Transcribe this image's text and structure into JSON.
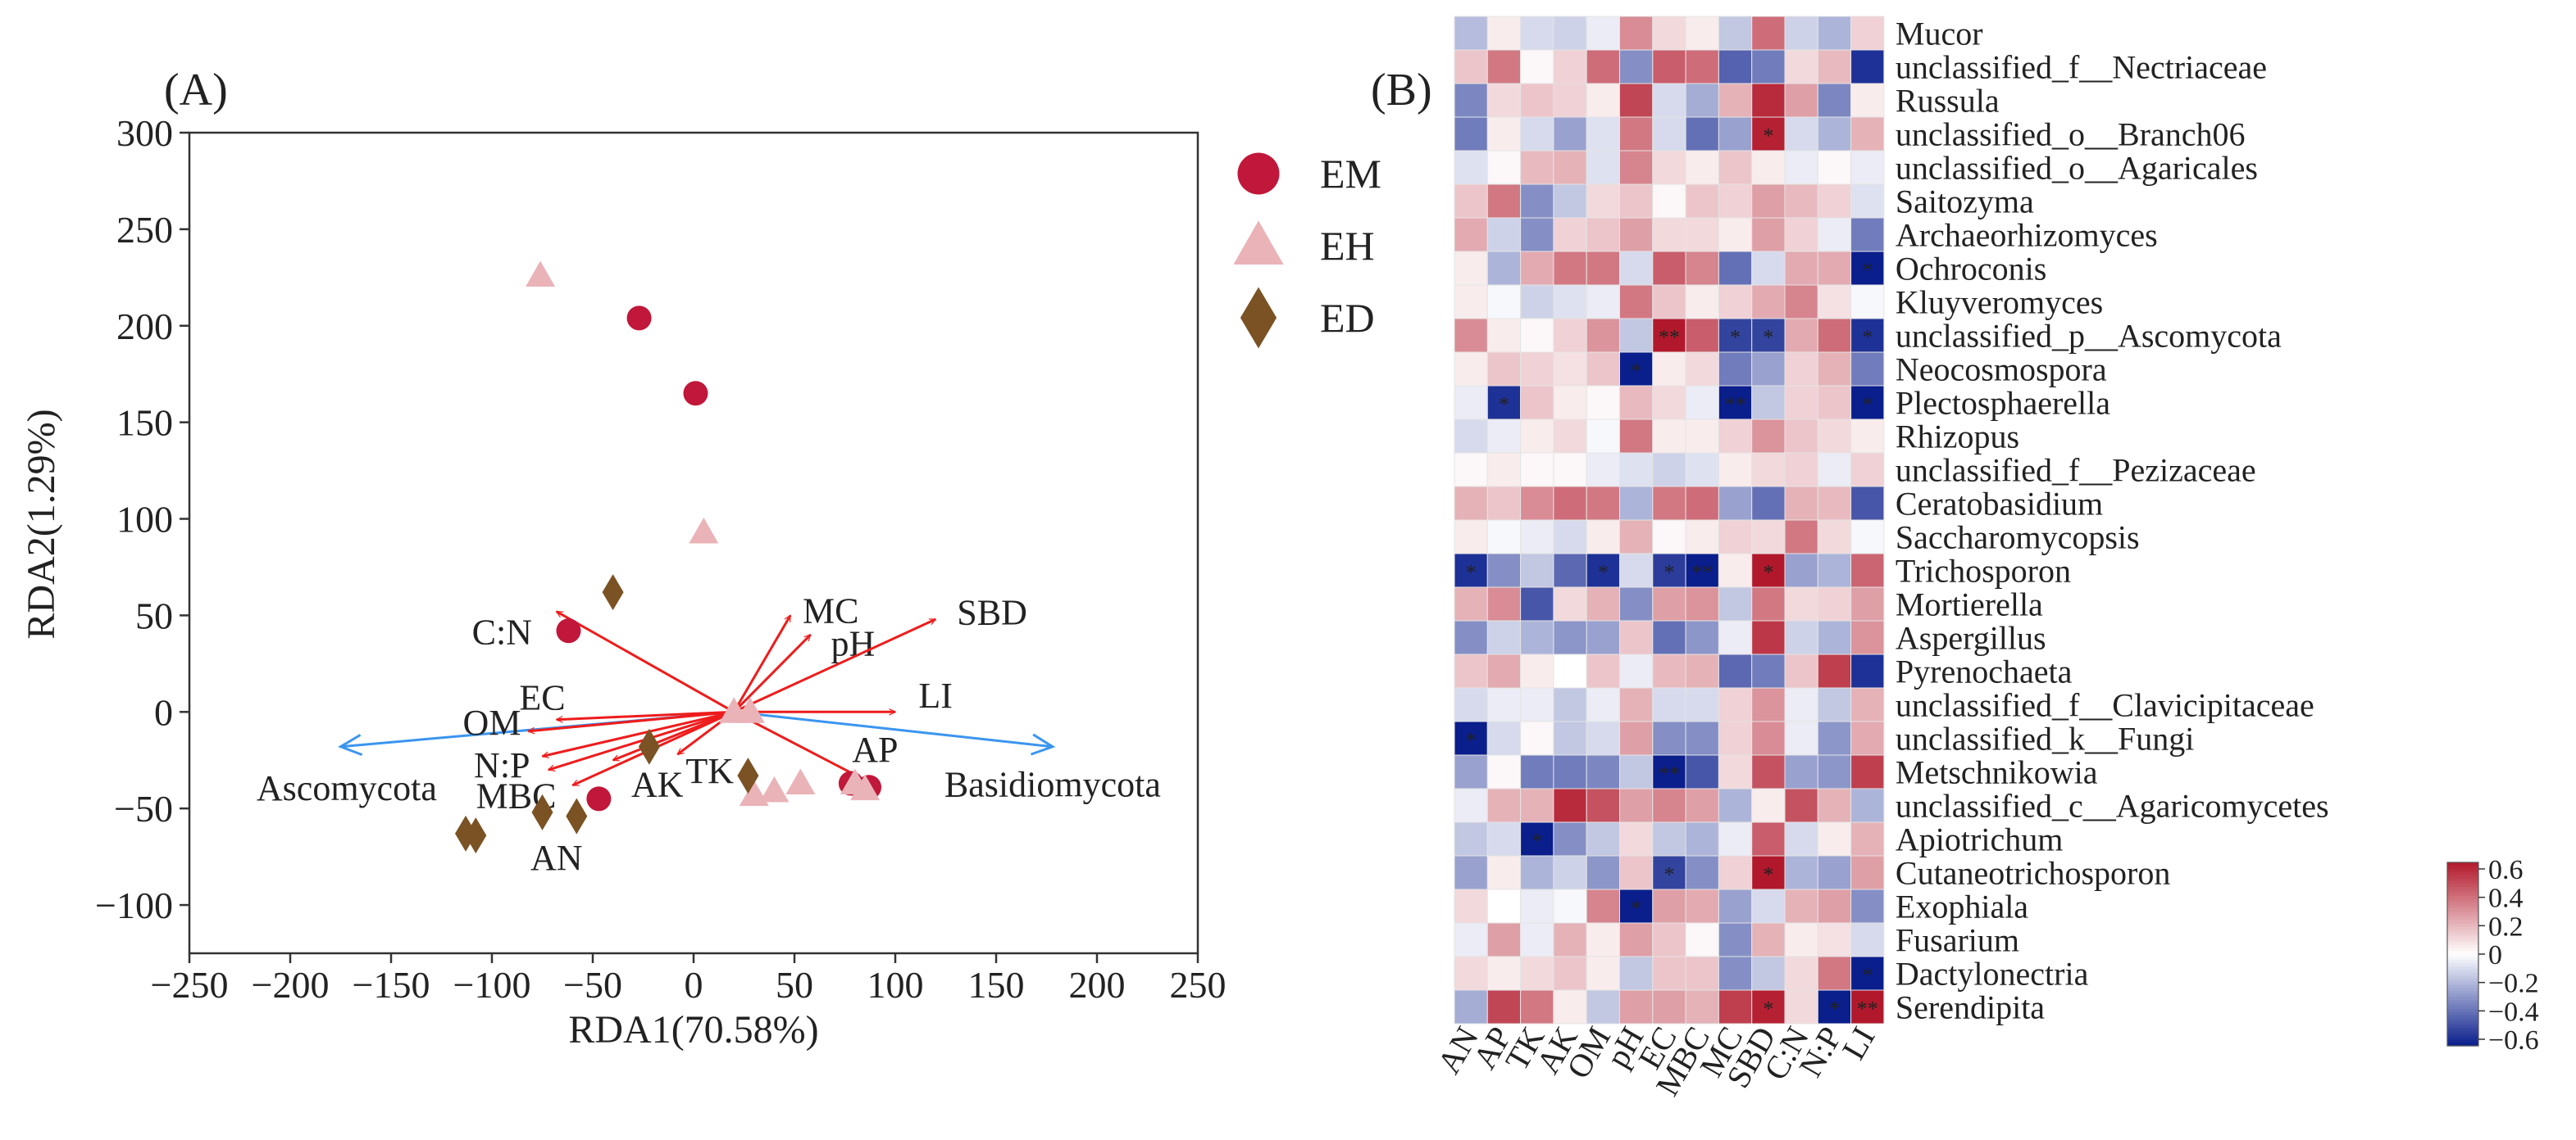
{
  "panels": {
    "a": {
      "label": "(A)",
      "legend": [
        {
          "label": "EM",
          "shape": "circle",
          "color": "#c0173a"
        },
        {
          "label": "EH",
          "shape": "triangle",
          "color": "#eab3b8"
        },
        {
          "label": "ED",
          "shape": "diamond",
          "color": "#7b5224"
        }
      ]
    },
    "b": {
      "label": "(B)",
      "colorbar_ticks": [
        "0.6",
        "0.4",
        "0.2",
        "0",
        "−0.2",
        "−0.4",
        "−0.6"
      ]
    }
  },
  "chart_data": [
    {
      "type": "scatter",
      "subtype": "rda-biplot",
      "xlabel": "RDA1(70.58%)",
      "ylabel": "RDA2(1.29%)",
      "xlim": [
        -250,
        250
      ],
      "ylim": [
        -125,
        300
      ],
      "xticks": [
        -250,
        -200,
        -150,
        -100,
        -50,
        0,
        50,
        100,
        150,
        200,
        250
      ],
      "yticks": [
        -100,
        -50,
        0,
        50,
        100,
        150,
        200,
        250,
        300
      ],
      "xtick_labels": [
        "−250",
        "−200",
        "−150",
        "−100",
        "−50",
        "0",
        "50",
        "100",
        "150",
        "200",
        "250"
      ],
      "ytick_labels": [
        "−100",
        "−50",
        "0",
        "50",
        "100",
        "150",
        "200",
        "250",
        "300"
      ],
      "series": [
        {
          "name": "EM",
          "points": [
            [
              -27,
              204
            ],
            [
              1,
              165
            ],
            [
              -62,
              42
            ],
            [
              -47,
              -45
            ],
            [
              78,
              -37
            ],
            [
              87,
              -39
            ]
          ]
        },
        {
          "name": "EH",
          "points": [
            [
              -76,
              226
            ],
            [
              5,
              93
            ],
            [
              20,
              0
            ],
            [
              28,
              0
            ],
            [
              30,
              -43
            ],
            [
              40,
              -41
            ],
            [
              53,
              -37
            ],
            [
              80,
              -37
            ],
            [
              85,
              -40
            ]
          ]
        },
        {
          "name": "ED",
          "points": [
            [
              -40,
              62
            ],
            [
              -22,
              -18
            ],
            [
              27,
              -33
            ],
            [
              -75,
              -52
            ],
            [
              -58,
              -54
            ],
            [
              -113,
              -63
            ],
            [
              -108,
              -64
            ]
          ]
        }
      ],
      "env_arrows": [
        {
          "name": "C:N",
          "x": -68,
          "y": 52,
          "lx": -95,
          "ly": 42
        },
        {
          "name": "EC",
          "x": -68,
          "y": -4,
          "lx": -75,
          "ly": 8
        },
        {
          "name": "OM",
          "x": -82,
          "y": -10,
          "lx": -100,
          "ly": -5
        },
        {
          "name": "N:P",
          "x": -75,
          "y": -23,
          "lx": -95,
          "ly": -27
        },
        {
          "name": "MBC",
          "x": -72,
          "y": -30,
          "lx": -88,
          "ly": -43
        },
        {
          "name": "AN",
          "x": -60,
          "y": -38,
          "lx": -68,
          "ly": -75
        },
        {
          "name": "AK",
          "x": -40,
          "y": -25,
          "lx": -18,
          "ly": -37
        },
        {
          "name": "TK",
          "x": -8,
          "y": -22,
          "lx": 8,
          "ly": -30
        },
        {
          "name": "MC",
          "x": 48,
          "y": 50,
          "lx": 68,
          "ly": 53
        },
        {
          "name": "pH",
          "x": 58,
          "y": 40,
          "lx": 79,
          "ly": 36
        },
        {
          "name": "SBD",
          "x": 120,
          "y": 48,
          "lx": 148,
          "ly": 52
        },
        {
          "name": "LI",
          "x": 100,
          "y": 0,
          "lx": 120,
          "ly": 9
        },
        {
          "name": "AP",
          "x": 90,
          "y": -38,
          "lx": 90,
          "ly": -19
        }
      ],
      "species_arrows": [
        {
          "name": "Ascomycota",
          "x": -175,
          "y": -18,
          "lx": -172,
          "ly": -39
        },
        {
          "name": "Basidiomycota",
          "x": 178,
          "y": -18,
          "lx": 178,
          "ly": -37
        }
      ],
      "arrow_origin": [
        20,
        0
      ],
      "colors": {
        "env_arrow": "#ee1c1c",
        "species_arrow": "#3b95ef"
      }
    },
    {
      "type": "heatmap",
      "columns": [
        "AN",
        "AP",
        "TK",
        "AK",
        "OM",
        "pH",
        "EC",
        "MBC",
        "MC",
        "SBD",
        "C:N",
        "N:P",
        "LI"
      ],
      "rows": [
        "Mucor",
        "unclassified_f__Nectriaceae",
        "Russula",
        "unclassified_o__Branch06",
        "unclassified_o__Agaricales",
        "Saitozyma",
        "Archaeorhizomyces",
        "Ochroconis",
        "Kluyveromyces",
        "unclassified_p__Ascomycota",
        "Neocosmospora",
        "Plectosphaerella",
        "Rhizopus",
        "unclassified_f__Pezizaceae",
        "Ceratobasidium",
        "Saccharomycopsis",
        "Trichosporon",
        "Mortierella",
        "Aspergillus",
        "Pyrenochaeta",
        "unclassified_f__Clavicipitaceae",
        "unclassified_k__Fungi",
        "Metschnikowia",
        "unclassified_c__Agaricomycetes",
        "Apiotrichum",
        "Cutaneotrichosporon",
        "Exophiala",
        "Fusarium",
        "Dactylonectria",
        "Serendipita"
      ],
      "values": [
        [
          -0.18,
          0.05,
          -0.1,
          -0.12,
          -0.05,
          0.3,
          0.1,
          0.05,
          -0.15,
          0.38,
          -0.12,
          -0.2,
          0.12
        ],
        [
          0.15,
          0.35,
          0.02,
          0.12,
          0.38,
          -0.3,
          0.42,
          0.38,
          -0.42,
          -0.35,
          0.1,
          0.18,
          -0.55
        ],
        [
          -0.32,
          0.1,
          0.15,
          0.12,
          0.05,
          0.48,
          -0.1,
          -0.22,
          0.2,
          0.55,
          0.25,
          -0.32,
          0.05
        ],
        [
          -0.35,
          0.05,
          -0.1,
          -0.25,
          -0.08,
          0.35,
          -0.1,
          -0.38,
          -0.25,
          0.58,
          -0.1,
          -0.2,
          0.2
        ],
        [
          -0.08,
          0.02,
          0.18,
          0.2,
          -0.08,
          0.32,
          0.1,
          0.05,
          0.15,
          0.05,
          -0.05,
          0.02,
          -0.05
        ],
        [
          0.15,
          0.35,
          -0.3,
          -0.15,
          0.1,
          0.15,
          0.02,
          0.15,
          0.12,
          0.25,
          0.18,
          0.12,
          -0.08
        ],
        [
          0.22,
          -0.12,
          -0.3,
          0.12,
          0.15,
          0.25,
          0.1,
          0.1,
          0.05,
          0.25,
          0.12,
          -0.05,
          -0.35
        ],
        [
          0.05,
          -0.2,
          0.22,
          0.35,
          0.35,
          -0.1,
          0.42,
          0.32,
          -0.38,
          -0.1,
          0.22,
          0.22,
          -0.68
        ],
        [
          0.05,
          -0.02,
          -0.12,
          -0.08,
          -0.05,
          0.35,
          0.15,
          0.05,
          0.12,
          0.22,
          0.32,
          0.08,
          -0.02
        ],
        [
          0.3,
          0.05,
          0.02,
          0.12,
          0.28,
          -0.15,
          0.68,
          0.42,
          -0.5,
          -0.5,
          0.22,
          0.38,
          -0.55
        ],
        [
          0.05,
          0.15,
          0.12,
          0.08,
          0.15,
          -0.62,
          0.05,
          0.1,
          -0.35,
          -0.25,
          0.12,
          0.2,
          -0.35
        ],
        [
          -0.05,
          -0.55,
          0.15,
          0.05,
          0.02,
          0.18,
          0.1,
          -0.05,
          -0.72,
          -0.15,
          0.12,
          0.15,
          -0.62
        ],
        [
          -0.1,
          -0.05,
          0.05,
          0.1,
          -0.02,
          0.35,
          0.05,
          0.05,
          0.12,
          0.28,
          0.15,
          0.1,
          0.05
        ],
        [
          0.02,
          0.05,
          0.02,
          0.02,
          -0.05,
          -0.08,
          -0.12,
          -0.08,
          0.05,
          0.1,
          0.12,
          -0.05,
          0.12
        ],
        [
          0.2,
          0.15,
          0.3,
          0.38,
          0.35,
          -0.2,
          0.35,
          0.38,
          -0.25,
          -0.38,
          0.2,
          0.18,
          -0.45
        ],
        [
          0.05,
          -0.02,
          -0.05,
          -0.1,
          0.05,
          0.2,
          0.02,
          0.05,
          0.12,
          0.1,
          0.35,
          0.1,
          -0.02
        ],
        [
          -0.55,
          -0.3,
          -0.15,
          -0.4,
          -0.55,
          -0.1,
          -0.52,
          -0.65,
          0.05,
          0.65,
          -0.25,
          -0.2,
          0.4
        ],
        [
          0.2,
          0.3,
          -0.45,
          0.1,
          0.2,
          -0.3,
          0.25,
          0.28,
          -0.15,
          0.35,
          0.1,
          0.12,
          0.25
        ],
        [
          -0.3,
          -0.12,
          -0.2,
          -0.28,
          -0.25,
          0.15,
          -0.38,
          -0.28,
          -0.05,
          0.52,
          -0.12,
          -0.2,
          0.28
        ],
        [
          0.15,
          0.22,
          0.05,
          0.0,
          0.15,
          -0.05,
          0.18,
          0.2,
          -0.4,
          -0.35,
          0.15,
          0.5,
          -0.55
        ],
        [
          -0.1,
          -0.05,
          -0.05,
          -0.15,
          -0.05,
          0.2,
          -0.1,
          -0.1,
          0.12,
          0.28,
          -0.05,
          -0.15,
          0.2
        ],
        [
          -0.62,
          -0.1,
          0.02,
          -0.15,
          -0.1,
          0.25,
          -0.3,
          -0.3,
          0.12,
          0.3,
          -0.05,
          -0.28,
          0.22
        ],
        [
          -0.25,
          0.02,
          -0.35,
          -0.35,
          -0.32,
          -0.15,
          -0.68,
          -0.45,
          0.1,
          0.45,
          -0.25,
          -0.28,
          0.5
        ],
        [
          -0.05,
          0.2,
          0.2,
          0.55,
          0.45,
          0.25,
          0.32,
          0.25,
          -0.2,
          0.05,
          0.45,
          0.2,
          -0.2
        ],
        [
          -0.15,
          -0.1,
          -0.65,
          -0.3,
          -0.15,
          0.1,
          -0.15,
          -0.2,
          -0.05,
          0.42,
          -0.1,
          0.05,
          0.2
        ],
        [
          -0.25,
          0.05,
          -0.2,
          -0.12,
          -0.28,
          0.15,
          -0.5,
          -0.3,
          0.12,
          0.6,
          -0.2,
          -0.25,
          0.25
        ],
        [
          0.1,
          0.0,
          -0.05,
          -0.02,
          0.32,
          -0.65,
          0.25,
          0.22,
          -0.25,
          -0.1,
          0.2,
          0.25,
          -0.3
        ],
        [
          -0.05,
          0.25,
          -0.05,
          0.2,
          0.05,
          0.25,
          0.15,
          0.02,
          -0.3,
          0.2,
          0.05,
          0.08,
          -0.1
        ],
        [
          0.1,
          0.05,
          0.1,
          0.15,
          0.05,
          -0.15,
          0.15,
          0.15,
          -0.3,
          -0.15,
          0.1,
          0.35,
          -0.62
        ],
        [
          -0.22,
          0.48,
          0.35,
          0.05,
          -0.15,
          0.25,
          0.25,
          0.2,
          0.5,
          0.58,
          0.1,
          -0.62,
          0.72
        ]
      ],
      "significance": [
        {
          "row": 3,
          "col": 9,
          "mark": "*"
        },
        {
          "row": 7,
          "col": 12,
          "mark": "*"
        },
        {
          "row": 9,
          "col": 6,
          "mark": "**"
        },
        {
          "row": 9,
          "col": 8,
          "mark": "*"
        },
        {
          "row": 9,
          "col": 9,
          "mark": "*"
        },
        {
          "row": 9,
          "col": 12,
          "mark": "*"
        },
        {
          "row": 10,
          "col": 5,
          "mark": "*"
        },
        {
          "row": 11,
          "col": 1,
          "mark": "*"
        },
        {
          "row": 11,
          "col": 8,
          "mark": "**"
        },
        {
          "row": 11,
          "col": 12,
          "mark": "*"
        },
        {
          "row": 16,
          "col": 0,
          "mark": "*"
        },
        {
          "row": 16,
          "col": 4,
          "mark": "*"
        },
        {
          "row": 16,
          "col": 6,
          "mark": "*"
        },
        {
          "row": 16,
          "col": 7,
          "mark": "**"
        },
        {
          "row": 16,
          "col": 9,
          "mark": "*"
        },
        {
          "row": 21,
          "col": 0,
          "mark": "*"
        },
        {
          "row": 22,
          "col": 6,
          "mark": "**"
        },
        {
          "row": 24,
          "col": 2,
          "mark": "*"
        },
        {
          "row": 25,
          "col": 6,
          "mark": "*"
        },
        {
          "row": 25,
          "col": 9,
          "mark": "*"
        },
        {
          "row": 26,
          "col": 5,
          "mark": "*"
        },
        {
          "row": 28,
          "col": 12,
          "mark": "*"
        },
        {
          "row": 29,
          "col": 9,
          "mark": "*"
        },
        {
          "row": 29,
          "col": 11,
          "mark": "*"
        },
        {
          "row": 29,
          "col": 12,
          "mark": "**"
        }
      ],
      "color_range": [
        -0.6,
        0.6
      ],
      "colormap": {
        "low": "#0a1e8c",
        "mid": "#ffffff",
        "high": "#b2182b"
      }
    }
  ]
}
